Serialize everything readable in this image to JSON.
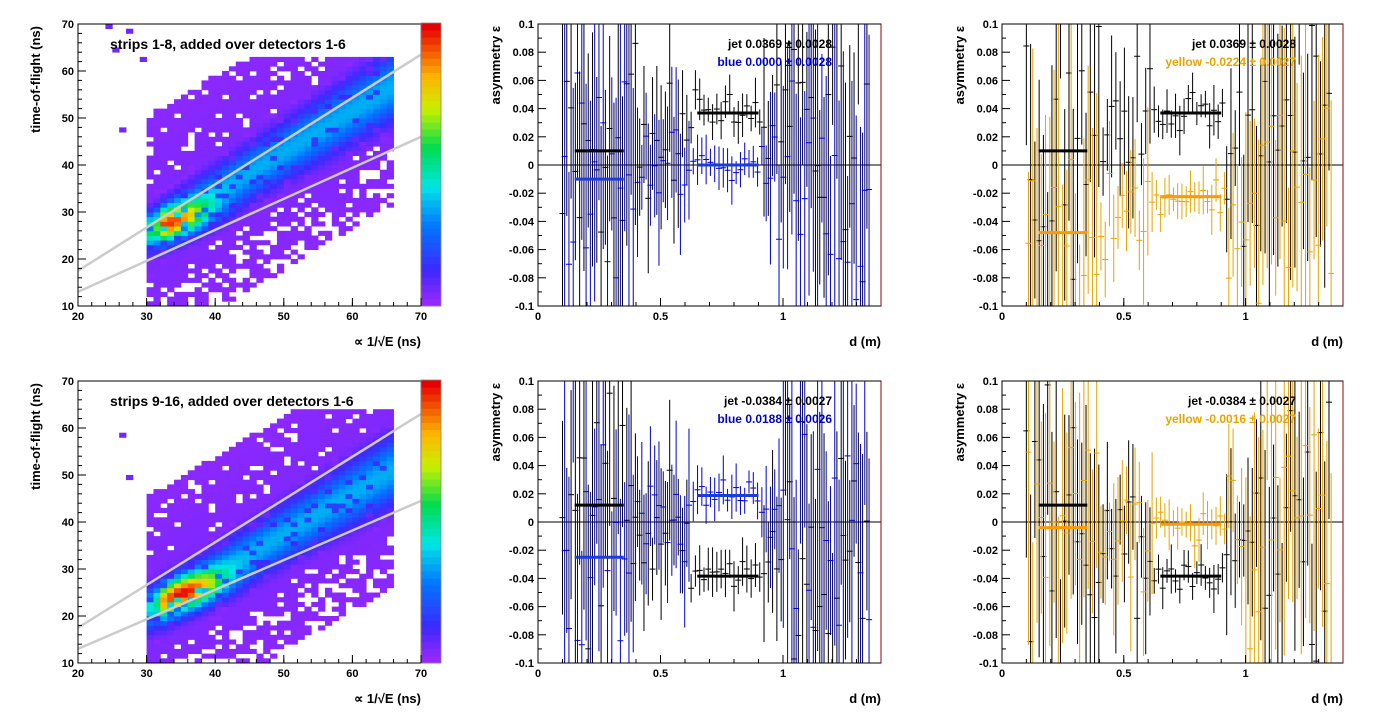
{
  "colors": {
    "frame": "#000000",
    "plot_bg": "#ffffff",
    "blue_series": "#0000cc",
    "blue_mean_bar": "#1a3cd8",
    "yellow_series": "#e8a400",
    "yellow_mean_bar": "#ff9900",
    "jet_series": "#000000",
    "cut_lines": "#cccccc",
    "axis_right_edge": "#990000"
  },
  "chart_data": [
    {
      "id": "tof-top",
      "type": "heatmap",
      "title": "strips 1-8, added over detectors 1-6",
      "xlabel": "∝ 1/√E (ns)",
      "ylabel": "time-of-flight (ns)",
      "xlim": [
        20,
        70
      ],
      "ylim": [
        10,
        70
      ],
      "xticks": [
        "20",
        "30",
        "40",
        "50",
        "60",
        "70"
      ],
      "yticks": [
        "10",
        "20",
        "30",
        "40",
        "50",
        "60",
        "70"
      ],
      "band": {
        "x_start": 30,
        "x_end": 66,
        "center_slope": 0.88,
        "center_intercept": -1.2,
        "peak": [
          35,
          27
        ]
      },
      "cut_lines": [
        {
          "x": [
            20,
            70
          ],
          "y": [
            17.5,
            63.5
          ]
        },
        {
          "x": [
            20,
            70
          ],
          "y": [
            13,
            46
          ]
        }
      ],
      "colorbar": {
        "min": 0,
        "max": 1
      },
      "grid": false
    },
    {
      "id": "asym-blue-top",
      "type": "scatter",
      "xlabel": "d (m)",
      "ylabel": "asymmetry ε",
      "xlim": [
        0,
        1.4
      ],
      "ylim": [
        -0.1,
        0.1
      ],
      "xticks": [
        "0",
        "0.5",
        "1"
      ],
      "yticks": [
        "-0.1",
        "-0.08",
        "-0.06",
        "-0.04",
        "-0.02",
        "0",
        "0.02",
        "0.04",
        "0.06",
        "0.08",
        "0.1"
      ],
      "annotations": [
        {
          "label": "jet",
          "value": "0.0369 ± 0.0028",
          "color": "#000000"
        },
        {
          "label": "blue",
          "value": "0.0000 ± 0.0028",
          "color": "#0000cc"
        }
      ],
      "series": [
        {
          "name": "jet",
          "color": "#000000",
          "inner_mean": 0.01,
          "outer_mean": 0.0369
        },
        {
          "name": "blue",
          "color": "#0000cc",
          "inner_mean": -0.01,
          "outer_mean": 0.0
        }
      ],
      "mean_bar_ranges": [
        [
          0.15,
          0.35
        ],
        [
          0.65,
          0.9
        ]
      ],
      "grid": false
    },
    {
      "id": "asym-yellow-top",
      "type": "scatter",
      "xlabel": "d (m)",
      "ylabel": "asymmetry ε",
      "xlim": [
        0,
        1.4
      ],
      "ylim": [
        -0.1,
        0.1
      ],
      "xticks": [
        "0",
        "0.5",
        "1"
      ],
      "yticks": [
        "-0.1",
        "-0.08",
        "-0.06",
        "-0.04",
        "-0.02",
        "0",
        "0.02",
        "0.04",
        "0.06",
        "0.08",
        "0.1"
      ],
      "annotations": [
        {
          "label": "jet",
          "value": "0.0369 ± 0.0028",
          "color": "#000000"
        },
        {
          "label": "yellow",
          "value": "-0.0224 ± 0.0027",
          "color": "#e8a400"
        }
      ],
      "series": [
        {
          "name": "jet",
          "color": "#000000",
          "inner_mean": 0.01,
          "outer_mean": 0.0369
        },
        {
          "name": "yellow",
          "color": "#e8a400",
          "inner_mean": -0.048,
          "outer_mean": -0.0224
        }
      ],
      "mean_bar_ranges": [
        [
          0.15,
          0.35
        ],
        [
          0.65,
          0.9
        ]
      ],
      "grid": false
    },
    {
      "id": "tof-bottom",
      "type": "heatmap",
      "title": "strips 9-16, added over detectors 1-6",
      "xlabel": "∝ 1/√E (ns)",
      "ylabel": "time-of-flight (ns)",
      "xlim": [
        20,
        70
      ],
      "ylim": [
        10,
        70
      ],
      "xticks": [
        "20",
        "30",
        "40",
        "50",
        "60",
        "70"
      ],
      "yticks": [
        "10",
        "20",
        "30",
        "40",
        "50",
        "60",
        "70"
      ],
      "band": {
        "x_start": 30,
        "x_end": 66,
        "center_slope": 0.86,
        "center_intercept": -5.5,
        "peak": [
          35,
          25
        ]
      },
      "cut_lines": [
        {
          "x": [
            20,
            70
          ],
          "y": [
            17.5,
            63
          ]
        },
        {
          "x": [
            20,
            70
          ],
          "y": [
            13,
            44.5
          ]
        }
      ],
      "colorbar": {
        "min": 0,
        "max": 1
      },
      "grid": false
    },
    {
      "id": "asym-blue-bottom",
      "type": "scatter",
      "xlabel": "d (m)",
      "ylabel": "asymmetry ε",
      "xlim": [
        0,
        1.4
      ],
      "ylim": [
        -0.1,
        0.1
      ],
      "xticks": [
        "0",
        "0.5",
        "1"
      ],
      "yticks": [
        "-0.1",
        "-0.08",
        "-0.06",
        "-0.04",
        "-0.02",
        "0",
        "0.02",
        "0.04",
        "0.06",
        "0.08",
        "0.1"
      ],
      "annotations": [
        {
          "label": "jet",
          "value": "-0.0384 ± 0.0027",
          "color": "#000000"
        },
        {
          "label": "blue",
          "value": "0.0188 ± 0.0026",
          "color": "#0000cc"
        }
      ],
      "series": [
        {
          "name": "jet",
          "color": "#000000",
          "inner_mean": 0.012,
          "outer_mean": -0.0384
        },
        {
          "name": "blue",
          "color": "#0000cc",
          "inner_mean": -0.025,
          "outer_mean": 0.0188
        }
      ],
      "mean_bar_ranges": [
        [
          0.15,
          0.35
        ],
        [
          0.65,
          0.9
        ]
      ],
      "grid": false
    },
    {
      "id": "asym-yellow-bottom",
      "type": "scatter",
      "xlabel": "d (m)",
      "ylabel": "asymmetry ε",
      "xlim": [
        0,
        1.4
      ],
      "ylim": [
        -0.1,
        0.1
      ],
      "xticks": [
        "0",
        "0.5",
        "1"
      ],
      "yticks": [
        "-0.1",
        "-0.08",
        "-0.06",
        "-0.04",
        "-0.02",
        "0",
        "0.02",
        "0.04",
        "0.06",
        "0.08",
        "0.1"
      ],
      "annotations": [
        {
          "label": "jet",
          "value": "-0.0384 ± 0.0027",
          "color": "#000000"
        },
        {
          "label": "yellow",
          "value": "-0.0016 ± 0.0027",
          "color": "#e8a400"
        }
      ],
      "series": [
        {
          "name": "jet",
          "color": "#000000",
          "inner_mean": 0.012,
          "outer_mean": -0.0384
        },
        {
          "name": "yellow",
          "color": "#e8a400",
          "inner_mean": -0.004,
          "outer_mean": -0.0016
        }
      ],
      "mean_bar_ranges": [
        [
          0.15,
          0.35
        ],
        [
          0.65,
          0.9
        ]
      ],
      "grid": false
    }
  ]
}
